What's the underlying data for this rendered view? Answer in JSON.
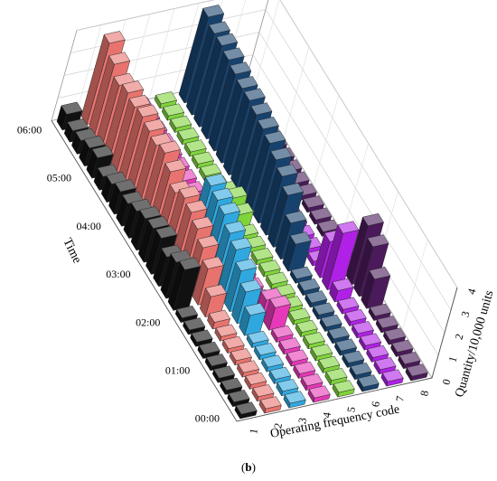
{
  "caption": {
    "open": "(",
    "letter": "b",
    "close": ")"
  },
  "chart_data": {
    "type": "bar3d",
    "xlabel": "Operating frequency code",
    "ylabel": "Time",
    "zlabel": "Quantity/10,000 units",
    "x_ticks": [
      "1",
      "2",
      "3",
      "4",
      "5",
      "6",
      "7",
      "8"
    ],
    "y_ticks": [
      "00:00",
      "01:00",
      "02:00",
      "03:00",
      "04:00",
      "05:00",
      "06:00"
    ],
    "z_ticks": [
      "0",
      "1",
      "2",
      "3",
      "4"
    ],
    "zlim": [
      0,
      4
    ],
    "times": [
      "00:00",
      "00:15",
      "00:30",
      "00:45",
      "01:00",
      "01:15",
      "01:30",
      "01:45",
      "02:00",
      "02:15",
      "02:30",
      "02:45",
      "03:00",
      "03:15",
      "03:30",
      "03:45",
      "04:00",
      "04:15",
      "04:30",
      "04:45",
      "05:00",
      "05:15",
      "05:30",
      "05:45",
      "06:00"
    ],
    "colors": [
      "#111111",
      "#e8736e",
      "#2fa8e0",
      "#e638b8",
      "#7fd43a",
      "#17426e",
      "#b020e6",
      "#4a1a5a"
    ],
    "series": [
      {
        "name": "1",
        "values": [
          0.2,
          0.2,
          0.2,
          0.2,
          0.2,
          0.2,
          0.2,
          0.2,
          0.2,
          1.8,
          1.6,
          1.3,
          1.6,
          1.5,
          1.4,
          1.2,
          1.0,
          1.0,
          0.8,
          0.6,
          0.9,
          0.8,
          0.6,
          0.5,
          0.7
        ]
      },
      {
        "name": "2",
        "values": [
          0.2,
          0.2,
          0.2,
          0.2,
          0.2,
          0.2,
          0.2,
          0.3,
          0.9,
          1.6,
          2.0,
          2.3,
          2.5,
          2.6,
          2.3,
          2.7,
          3.0,
          2.8,
          2.9,
          3.0,
          2.9,
          3.0,
          2.8,
          3.2,
          3.6
        ]
      },
      {
        "name": "3",
        "values": [
          0.2,
          0.2,
          0.2,
          0.2,
          0.2,
          0.2,
          0.9,
          1.4,
          1.8,
          2.2,
          2.4,
          2.7,
          2.8,
          2.9,
          0.2,
          0.2,
          0.2,
          0.2,
          0.2,
          0.2,
          0.2,
          0.2,
          0.2,
          0.4,
          0.9
        ]
      },
      {
        "name": "4",
        "values": [
          0.2,
          0.2,
          0.2,
          0.2,
          0.2,
          0.2,
          1.0,
          0.8,
          0.2,
          0.2,
          0.2,
          0.2,
          0.2,
          0.2,
          0.2,
          0.2,
          0.2,
          0.2,
          0.2,
          0.2,
          0.2,
          0.2,
          0.2,
          0.2,
          0.2
        ]
      },
      {
        "name": "5",
        "values": [
          0.2,
          0.2,
          0.2,
          0.2,
          0.2,
          0.2,
          0.2,
          0.2,
          0.2,
          0.2,
          0.2,
          0.2,
          0.2,
          0.2,
          0.6,
          0.8,
          0.5,
          0.2,
          0.2,
          0.2,
          0.2,
          0.2,
          0.2,
          0.2,
          0.2
        ]
      },
      {
        "name": "6",
        "values": [
          0.2,
          0.2,
          0.2,
          0.2,
          0.2,
          0.2,
          0.2,
          0.2,
          0.2,
          0.2,
          1.2,
          1.6,
          2.3,
          2.6,
          2.8,
          3.0,
          3.1,
          3.2,
          3.3,
          3.3,
          3.4,
          3.5,
          3.6,
          3.6,
          3.8
        ]
      },
      {
        "name": "7",
        "values": [
          0.2,
          0.2,
          0.2,
          0.2,
          0.2,
          0.2,
          0.2,
          0.5,
          2.5,
          1.6,
          0.2,
          0.2,
          0.2,
          0.2,
          0.2,
          0.2,
          0.2,
          0.2,
          0.2,
          0.2,
          0.2,
          0.2,
          0.2,
          0.2,
          0.2
        ]
      },
      {
        "name": "8",
        "values": [
          0.2,
          0.2,
          0.2,
          0.2,
          0.2,
          0.2,
          1.3,
          2.2,
          2.6,
          0.2,
          0.2,
          0.2,
          0.2,
          0.2,
          0.2,
          0.2,
          0.2,
          0.2,
          0.2,
          0.2,
          0.2,
          0.2,
          0.2,
          0.2,
          0.2
        ]
      }
    ]
  }
}
